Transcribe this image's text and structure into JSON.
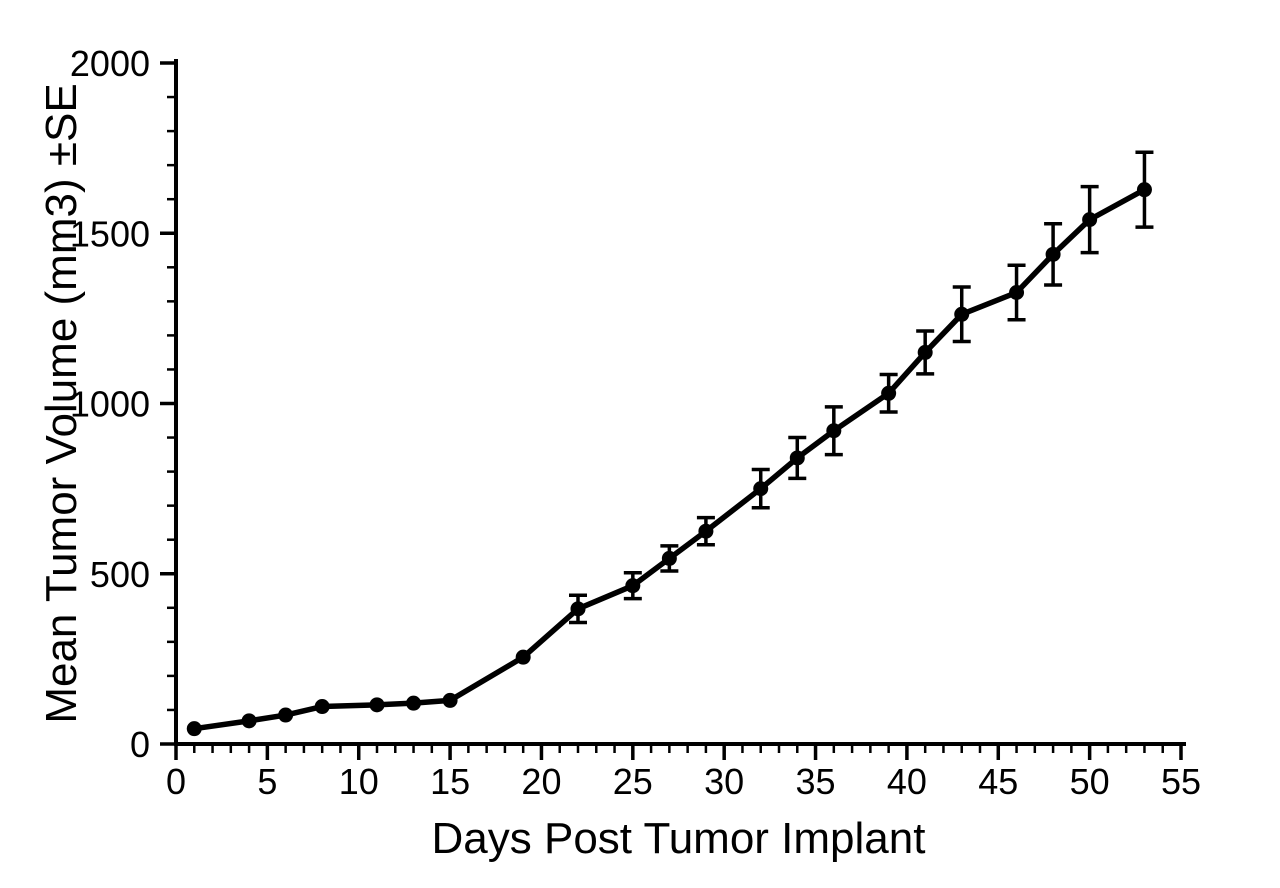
{
  "chart_data": {
    "type": "line",
    "xlabel": "Days Post Tumor Implant",
    "ylabel": "Mean Tumor Volume (mm3) ±SE",
    "xlim": [
      0,
      55
    ],
    "ylim": [
      0,
      2000
    ],
    "x_ticks": [
      0,
      5,
      10,
      15,
      20,
      25,
      30,
      35,
      40,
      45,
      50,
      55
    ],
    "y_ticks": [
      0,
      500,
      1000,
      1500,
      2000
    ],
    "x_minor_step": 1,
    "y_minor_step": 100,
    "grid": false,
    "legend": "none",
    "marker": "filled-circle",
    "line_color": "#000000",
    "background_color": "#ffffff",
    "series": [
      {
        "x": [
          1,
          4,
          6,
          8,
          11,
          13,
          15,
          19,
          22,
          25,
          27,
          29,
          32,
          34,
          36,
          39,
          41,
          43,
          46,
          48,
          50,
          53
        ],
        "y": [
          45,
          68,
          85,
          110,
          115,
          120,
          128,
          255,
          397,
          465,
          545,
          625,
          750,
          840,
          920,
          1030,
          1150,
          1262,
          1326,
          1438,
          1540,
          1628
        ],
        "se": [
          0,
          0,
          0,
          0,
          0,
          0,
          0,
          0,
          40,
          38,
          37,
          40,
          56,
          60,
          70,
          55,
          63,
          80,
          80,
          90,
          97,
          110
        ]
      }
    ]
  }
}
